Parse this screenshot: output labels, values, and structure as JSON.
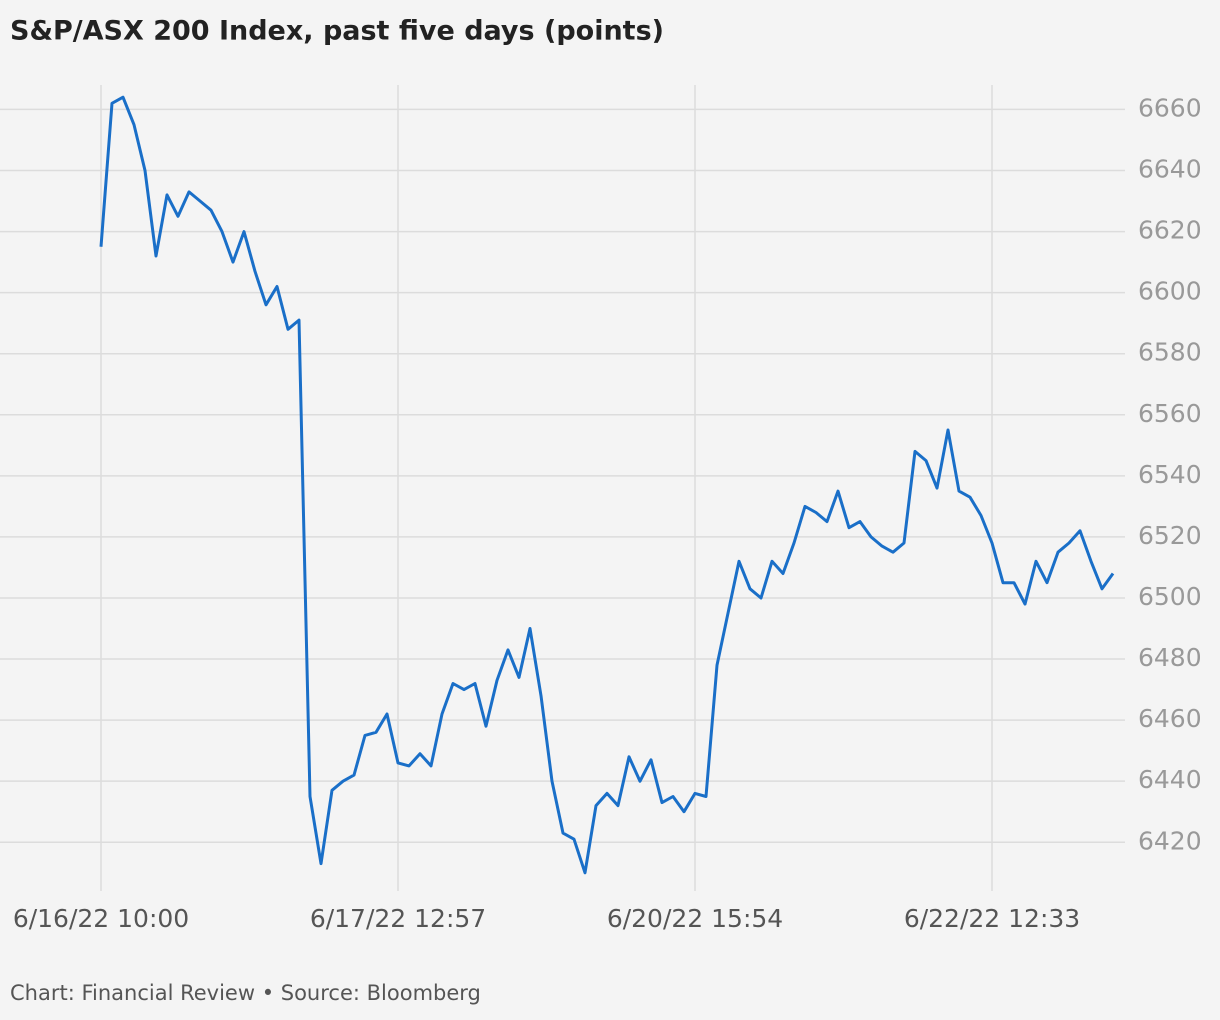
{
  "chart_data": {
    "type": "line",
    "title": "S&P/ASX 200 Index, past five days (points)",
    "footer": "Chart: Financial Review • Source: Bloomberg",
    "categories": [
      "6/16/22 10:00",
      null,
      null,
      null,
      null,
      null,
      null,
      null,
      null,
      null,
      null,
      null,
      null,
      null,
      null,
      null,
      null,
      null,
      null,
      null,
      null,
      null,
      null,
      null,
      null,
      null,
      null,
      "6/17/22 12:57",
      null,
      null,
      null,
      null,
      null,
      null,
      null,
      null,
      null,
      null,
      null,
      null,
      null,
      null,
      null,
      null,
      null,
      null,
      null,
      null,
      null,
      null,
      null,
      null,
      null,
      null,
      "6/20/22 15:54",
      null,
      null,
      null,
      null,
      null,
      null,
      null,
      null,
      null,
      null,
      null,
      null,
      null,
      null,
      null,
      null,
      null,
      null,
      null,
      null,
      null,
      null,
      null,
      null,
      null,
      null,
      "6/22/22 12:33",
      null,
      null,
      null,
      null,
      null,
      null,
      null,
      null,
      null,
      null,
      null
    ],
    "series": [
      {
        "name": "S&P/ASX 200",
        "color": "#1a6fc8",
        "values": [
          6615,
          6662,
          6664,
          6655,
          6640,
          6612,
          6632,
          6625,
          6633,
          6630,
          6627,
          6620,
          6610,
          6620,
          6607,
          6596,
          6602,
          6588,
          6591,
          6435,
          6413,
          6437,
          6440,
          6442,
          6455,
          6456,
          6462,
          6446,
          6445,
          6449,
          6445,
          6462,
          6472,
          6470,
          6472,
          6458,
          6473,
          6483,
          6474,
          6490,
          6468,
          6440,
          6423,
          6421,
          6410,
          6432,
          6436,
          6432,
          6448,
          6440,
          6447,
          6433,
          6435,
          6430,
          6436,
          6435,
          6478,
          6495,
          6512,
          6503,
          6500,
          6512,
          6508,
          6518,
          6530,
          6528,
          6525,
          6535,
          6523,
          6525,
          6520,
          6517,
          6515,
          6518,
          6548,
          6545,
          6536,
          6555,
          6535,
          6533,
          6527,
          6518,
          6505,
          6505,
          6498,
          6512,
          6505,
          6515,
          6518,
          6522,
          6512,
          6503,
          6508
        ]
      }
    ],
    "ylim": [
      6406,
      6668
    ],
    "yticks": [
      6420,
      6440,
      6460,
      6480,
      6500,
      6520,
      6540,
      6560,
      6580,
      6600,
      6620,
      6640,
      6660
    ],
    "grid": true
  }
}
